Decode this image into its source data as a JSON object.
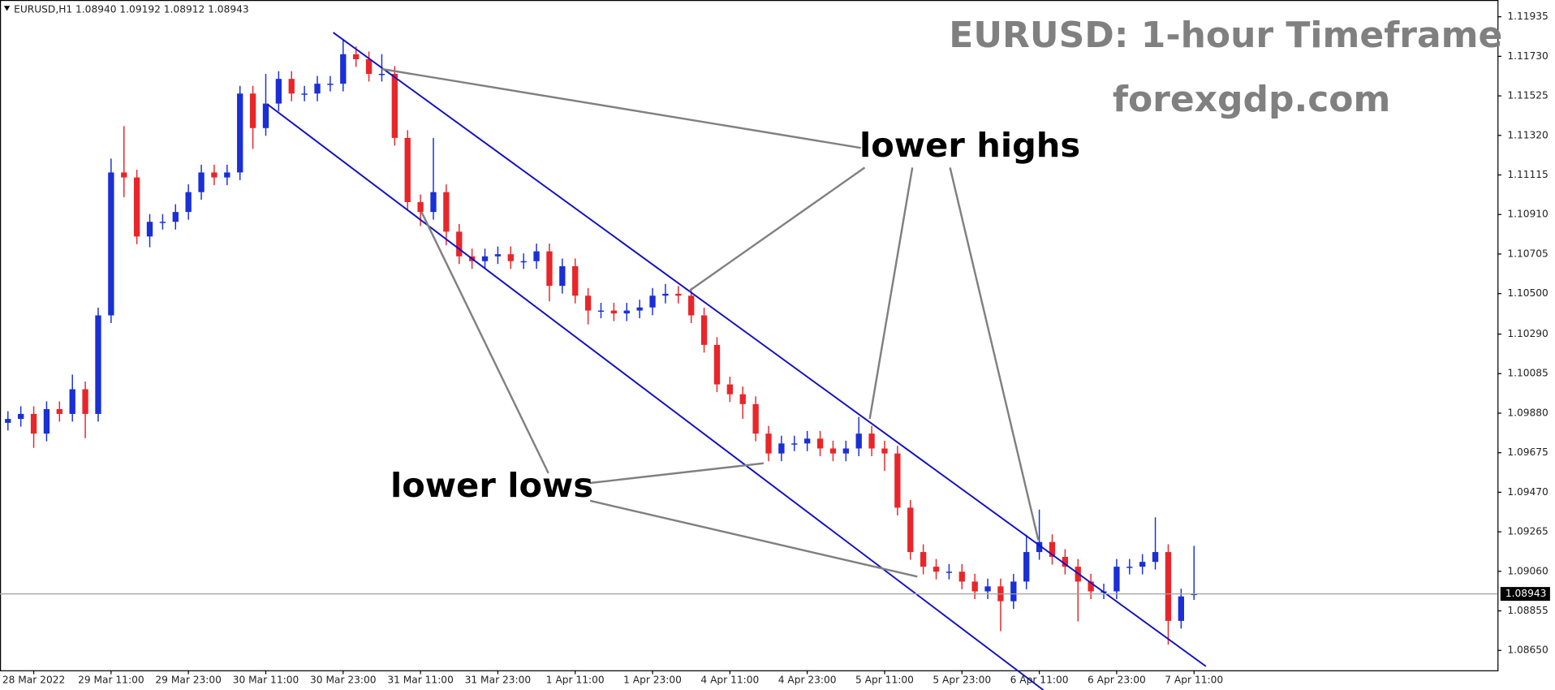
{
  "chart_data": {
    "type": "candlestick",
    "info": "EURUSD,H1  1.08940 1.09192 1.08912 1.08943",
    "title": "EURUSD: 1-hour Timeframe",
    "subtitle": "forexgdp.com",
    "annotations": [
      "lower highs",
      "lower lows"
    ],
    "up_color": "#1a2fd6",
    "down_color": "#e8262a",
    "categories": [
      null,
      null,
      "28 Mar 2022",
      null,
      null,
      null,
      null,
      null,
      "29 Mar 11:00",
      null,
      null,
      null,
      null,
      null,
      "29 Mar 23:00",
      null,
      null,
      null,
      null,
      null,
      "30 Mar 11:00",
      null,
      null,
      null,
      null,
      null,
      "30 Mar 23:00",
      null,
      null,
      null,
      null,
      null,
      "31 Mar 11:00",
      null,
      null,
      null,
      null,
      null,
      "31 Mar 23:00",
      null,
      null,
      null,
      null,
      null,
      "1 Apr 11:00",
      null,
      null,
      null,
      null,
      null,
      "1 Apr 23:00",
      null,
      null,
      null,
      null,
      null,
      "4 Apr 11:00",
      null,
      null,
      null,
      null,
      null,
      "4 Apr 23:00",
      null,
      null,
      null,
      null,
      null,
      "5 Apr 11:00",
      null,
      null,
      null,
      null,
      null,
      "5 Apr 23:00",
      null,
      null,
      null,
      null,
      null,
      "6 Apr 11:00",
      null,
      null,
      null,
      null,
      null,
      "6 Apr 23:00",
      null,
      null,
      null,
      null,
      null,
      "7 Apr 11:00"
    ],
    "open": [
      1.0983,
      1.0985,
      1.09876,
      1.09774,
      1.09901,
      1.09876,
      1.10004,
      1.09876,
      1.10387,
      1.11128,
      1.11102,
      1.10796,
      1.10872,
      1.10872,
      1.10923,
      1.11026,
      1.11128,
      1.11102,
      1.11128,
      1.11537,
      1.11358,
      1.11485,
      1.11613,
      1.11537,
      1.11537,
      1.11588,
      1.11588,
      1.11741,
      1.11715,
      1.11639,
      1.11639,
      1.11307,
      1.10974,
      1.10923,
      1.11026,
      1.10821,
      1.10693,
      1.10668,
      1.10693,
      1.10704,
      1.10668,
      1.10668,
      1.10719,
      1.1054,
      1.10642,
      1.10489,
      1.10412,
      1.10412,
      1.10397,
      1.10412,
      1.10428,
      1.10489,
      1.10499,
      1.10489,
      1.10387,
      1.10234,
      1.10029,
      1.09978,
      1.09927,
      1.09774,
      1.09671,
      1.09723,
      1.09723,
      1.09748,
      1.09697,
      1.09671,
      1.09697,
      1.09774,
      1.09697,
      1.09671,
      1.0939,
      1.0916,
      1.09084,
      1.09058,
      1.09058,
      1.09007,
      1.08956,
      1.08982,
      1.08905,
      1.09007,
      1.0916,
      1.09212,
      1.09135,
      1.09084,
      1.09007,
      1.08956,
      1.08956,
      1.09084,
      1.09084,
      1.09109,
      1.0916,
      1.08803,
      1.0894
    ],
    "high": [
      1.0989,
      1.09916,
      1.09916,
      1.09941,
      1.09941,
      1.1008,
      1.10044,
      1.10427,
      1.112,
      1.11368,
      1.11142,
      1.10912,
      1.10912,
      1.10963,
      1.11066,
      1.11168,
      1.11168,
      1.11168,
      1.11577,
      1.11577,
      1.11639,
      1.11653,
      1.11653,
      1.11577,
      1.11628,
      1.11628,
      1.11818,
      1.11781,
      1.11755,
      1.11741,
      1.11679,
      1.11347,
      1.11014,
      1.11307,
      1.11066,
      1.10861,
      1.10733,
      1.10733,
      1.10744,
      1.10744,
      1.10708,
      1.10759,
      1.10759,
      1.10682,
      1.10682,
      1.10529,
      1.10452,
      1.10452,
      1.10452,
      1.10468,
      1.10529,
      1.1055,
      1.10539,
      1.10529,
      1.10427,
      1.10274,
      1.10069,
      1.10018,
      1.09967,
      1.09814,
      1.09763,
      1.09763,
      1.09788,
      1.09788,
      1.09737,
      1.09737,
      1.0986,
      1.09814,
      1.09737,
      1.09711,
      1.0943,
      1.092,
      1.09124,
      1.09098,
      1.09098,
      1.09047,
      1.09022,
      1.09022,
      1.09047,
      1.0925,
      1.0938,
      1.09252,
      1.09175,
      1.09124,
      1.09047,
      1.08996,
      1.09124,
      1.09124,
      1.09149,
      1.0934,
      1.092,
      1.0897,
      1.09192
    ],
    "low": [
      1.0979,
      1.0981,
      1.097,
      1.09734,
      1.09836,
      1.09836,
      1.0975,
      1.09836,
      1.10347,
      1.11,
      1.10756,
      1.1074,
      1.10832,
      1.10832,
      1.10883,
      1.10986,
      1.11062,
      1.11062,
      1.11088,
      1.1125,
      1.11318,
      1.11445,
      1.11497,
      1.11497,
      1.11497,
      1.11548,
      1.11548,
      1.11675,
      1.11599,
      1.11599,
      1.11267,
      1.10934,
      1.1085,
      1.10883,
      1.1075,
      1.10653,
      1.10628,
      1.10628,
      1.10653,
      1.10628,
      1.10628,
      1.10628,
      1.1046,
      1.105,
      1.10449,
      1.1034,
      1.10372,
      1.10357,
      1.10357,
      1.10372,
      1.10388,
      1.10449,
      1.10449,
      1.10347,
      1.10194,
      1.09989,
      1.09938,
      1.0985,
      1.09734,
      1.09631,
      1.09631,
      1.09683,
      1.09683,
      1.09657,
      1.09631,
      1.09631,
      1.09657,
      1.09657,
      1.0958,
      1.0935,
      1.0912,
      1.09044,
      1.09018,
      1.09018,
      1.08967,
      1.08916,
      1.08916,
      1.0875,
      1.08865,
      1.08967,
      1.0912,
      1.09095,
      1.09044,
      1.088,
      1.08916,
      1.08916,
      1.08916,
      1.09044,
      1.09044,
      1.09069,
      1.0868,
      1.08763,
      1.08912
    ],
    "close": [
      1.0985,
      1.09876,
      1.09774,
      1.09901,
      1.09876,
      1.10004,
      1.09876,
      1.10387,
      1.11128,
      1.11102,
      1.10796,
      1.10872,
      1.10872,
      1.10923,
      1.11026,
      1.11128,
      1.11102,
      1.11128,
      1.11537,
      1.11358,
      1.11485,
      1.11613,
      1.11537,
      1.11537,
      1.11588,
      1.11588,
      1.11741,
      1.11715,
      1.11639,
      1.11639,
      1.11307,
      1.10974,
      1.10923,
      1.11026,
      1.10821,
      1.10693,
      1.10668,
      1.10693,
      1.10704,
      1.10668,
      1.10668,
      1.10719,
      1.1054,
      1.10642,
      1.10489,
      1.10412,
      1.10412,
      1.10397,
      1.10412,
      1.10428,
      1.10489,
      1.10499,
      1.10489,
      1.10387,
      1.10234,
      1.10029,
      1.09978,
      1.09927,
      1.09774,
      1.09671,
      1.09723,
      1.09723,
      1.09748,
      1.09697,
      1.09671,
      1.09697,
      1.09774,
      1.09697,
      1.09671,
      1.0939,
      1.0916,
      1.09084,
      1.09058,
      1.09058,
      1.09007,
      1.08956,
      1.08982,
      1.08905,
      1.09007,
      1.0916,
      1.09212,
      1.09135,
      1.09084,
      1.09007,
      1.08956,
      1.08956,
      1.09084,
      1.09084,
      1.09109,
      1.0916,
      1.08803,
      1.0893,
      1.08943
    ],
    "ylim": [
      1.08547,
      1.12022
    ],
    "yticks": [
      1.11935,
      {
        "value": 1.1173,
        "label": "1.11730"
      },
      1.11525,
      {
        "value": 1.1132,
        "label": "1.11320"
      },
      1.11115,
      {
        "value": 1.1091,
        "label": "1.10910"
      },
      1.10705,
      {
        "value": 1.105,
        "label": "1.10500"
      },
      {
        "value": 1.1029,
        "label": "1.10290"
      },
      1.10085,
      {
        "value": 1.0988,
        "label": "1.09880"
      },
      1.09675,
      {
        "value": 1.0947,
        "label": "1.09470"
      },
      1.09265,
      {
        "value": 1.0906,
        "label": "1.09060"
      },
      1.08855,
      {
        "value": 1.0865,
        "label": "1.08650"
      }
    ]
  }
}
